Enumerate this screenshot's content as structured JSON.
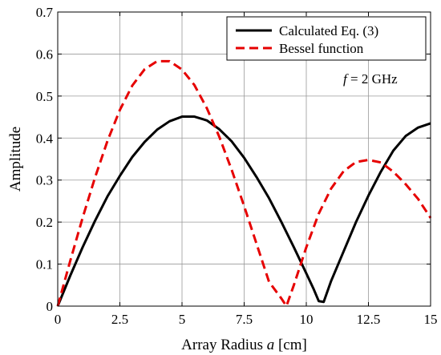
{
  "chart_data": {
    "type": "line",
    "xlabel_prefix": "Array Radius ",
    "xlabel_var": "a",
    "xlabel_suffix": " [cm]",
    "ylabel": "Amplitude",
    "xlim": [
      0,
      15
    ],
    "ylim": [
      0,
      0.7
    ],
    "xticks": [
      0,
      2.5,
      5,
      7.5,
      10,
      12.5,
      15
    ],
    "xtick_labels": [
      "0",
      "2.5",
      "5",
      "7.5",
      "10",
      "12.5",
      "15"
    ],
    "yticks": [
      0,
      0.1,
      0.2,
      0.3,
      0.4,
      0.5,
      0.6,
      0.7
    ],
    "ytick_labels": [
      "0",
      "0.1",
      "0.2",
      "0.3",
      "0.4",
      "0.5",
      "0.6",
      "0.7"
    ],
    "grid": true,
    "legend_position": "top-right",
    "annotation": {
      "var": "f",
      "text": " = 2 GHz"
    },
    "series": [
      {
        "name": "Calculated Eq. (3)",
        "color": "#000000",
        "dash": "solid",
        "x": [
          0,
          0.5,
          1,
          1.5,
          2,
          2.5,
          3,
          3.5,
          4,
          4.5,
          5,
          5.5,
          6,
          6.5,
          7,
          7.5,
          8,
          8.5,
          9,
          9.5,
          10,
          10.3,
          10.5,
          10.7,
          11,
          11.5,
          12,
          12.5,
          13,
          13.5,
          14,
          14.5,
          15
        ],
        "y": [
          0.0,
          0.072,
          0.14,
          0.203,
          0.261,
          0.31,
          0.355,
          0.391,
          0.42,
          0.44,
          0.451,
          0.451,
          0.442,
          0.421,
          0.392,
          0.353,
          0.307,
          0.257,
          0.2,
          0.14,
          0.078,
          0.04,
          0.012,
          0.01,
          0.06,
          0.13,
          0.2,
          0.263,
          0.32,
          0.37,
          0.405,
          0.425,
          0.435
        ]
      },
      {
        "name": "Bessel function",
        "color": "#e60000",
        "dash": "dashed",
        "x": [
          0,
          0.5,
          1,
          1.5,
          2,
          2.5,
          3,
          3.5,
          4,
          4.5,
          5,
          5.5,
          6,
          6.5,
          7,
          7.5,
          8,
          8.5,
          9,
          9.2,
          9.5,
          10,
          10.5,
          11,
          11.5,
          12,
          12.5,
          13,
          13.5,
          14,
          14.5,
          15
        ],
        "y": [
          0.0,
          0.107,
          0.21,
          0.306,
          0.393,
          0.467,
          0.525,
          0.564,
          0.583,
          0.583,
          0.563,
          0.526,
          0.471,
          0.403,
          0.324,
          0.238,
          0.148,
          0.058,
          0.018,
          0.0,
          0.05,
          0.14,
          0.22,
          0.28,
          0.321,
          0.343,
          0.348,
          0.342,
          0.32,
          0.29,
          0.255,
          0.21
        ]
      }
    ]
  }
}
